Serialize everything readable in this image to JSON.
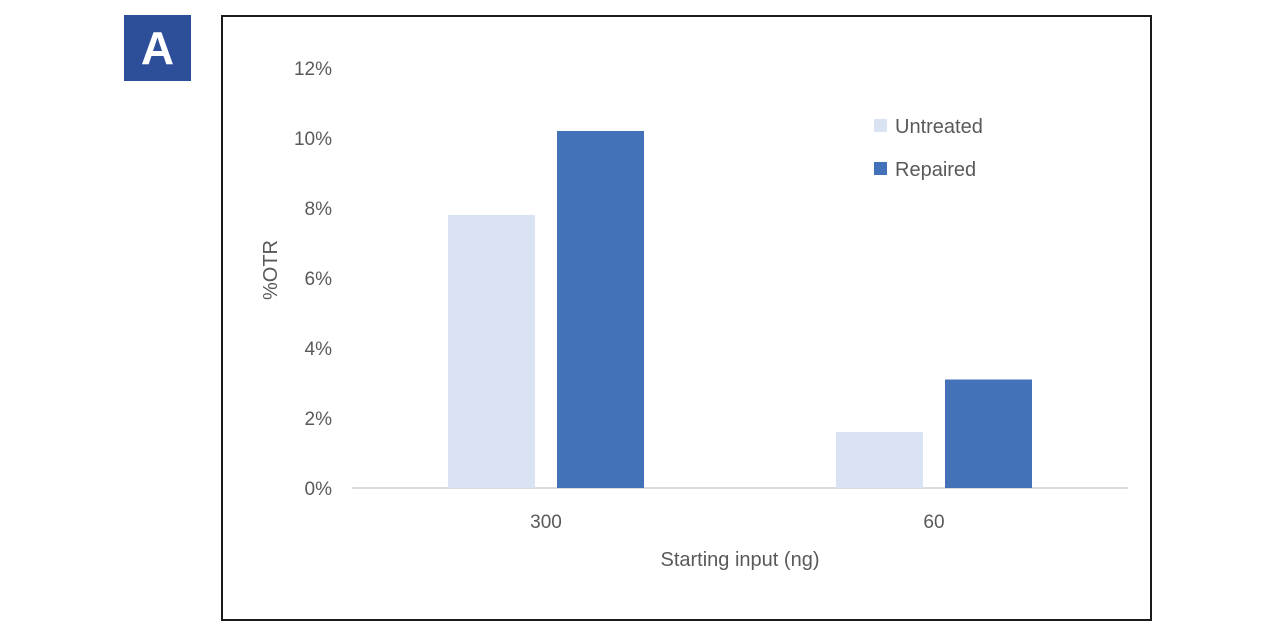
{
  "panel_label": "A",
  "chart_data": {
    "type": "bar",
    "categories": [
      "300",
      "60"
    ],
    "series": [
      {
        "name": "Untreated",
        "values": [
          7.8,
          1.6
        ],
        "color": "#dae3f3"
      },
      {
        "name": "Repaired",
        "values": [
          10.2,
          3.1
        ],
        "color": "#4472b8"
      }
    ],
    "title": "",
    "xlabel": "Starting input (ng)",
    "ylabel": "%OTR",
    "ylim": [
      0,
      12
    ],
    "yticks": [
      0,
      2,
      4,
      6,
      8,
      10,
      12
    ],
    "ytick_labels": [
      "0%",
      "2%",
      "4%",
      "6%",
      "8%",
      "10%",
      "12%"
    ],
    "grid": false,
    "legend_position": "top-right"
  }
}
